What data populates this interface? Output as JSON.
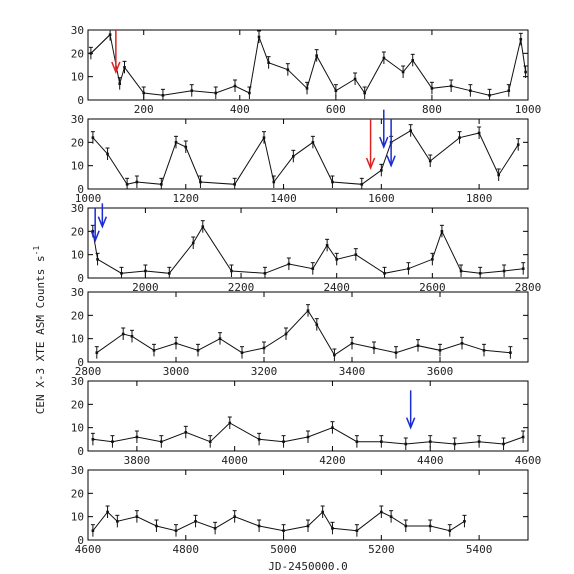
{
  "chart_data": {
    "type": "scatter",
    "ylabel": "CEN X-3 XTE ASM Counts s",
    "ylabel_superscript": "-1",
    "xlabel": "JD-2450000.0",
    "panels": [
      {
        "xlim": [
          84,
          1000
        ],
        "ylim": [
          0,
          30
        ],
        "x_ticks": [
          "200",
          "400",
          "600",
          "800",
          "1000"
        ],
        "x_tick_values": [
          200,
          400,
          600,
          800,
          1000
        ],
        "y_ticks": [
          "0",
          "10",
          "20",
          "30"
        ],
        "y_tick_values": [
          0,
          10,
          20,
          30
        ],
        "x": [
          90,
          130,
          150,
          160,
          200,
          240,
          300,
          350,
          390,
          420,
          440,
          460,
          500,
          540,
          560,
          600,
          640,
          660,
          700,
          740,
          760,
          800,
          840,
          880,
          920,
          960,
          985,
          995
        ],
        "y": [
          20,
          28,
          7,
          14,
          3,
          2,
          4,
          3,
          6,
          3,
          27,
          16,
          13,
          5,
          19,
          4,
          9,
          3,
          18,
          12,
          17,
          5,
          6,
          4,
          2,
          4,
          26,
          12
        ],
        "arrows": [
          {
            "x": 142,
            "color": "#dd2222",
            "y_from": 30,
            "y_to": 12
          }
        ],
        "segments": [
          {
            "x1": 90,
            "y1": 20,
            "x2": 130,
            "y2": 28
          }
        ]
      },
      {
        "xlim": [
          1000,
          1900
        ],
        "ylim": [
          0,
          30
        ],
        "x_ticks": [
          "1000",
          "1200",
          "1400",
          "1600",
          "1800"
        ],
        "x_tick_values": [
          1000,
          1200,
          1400,
          1600,
          1800
        ],
        "y_ticks": [
          "0",
          "10",
          "20",
          "30"
        ],
        "y_tick_values": [
          0,
          10,
          20,
          30
        ],
        "x": [
          1010,
          1040,
          1080,
          1100,
          1150,
          1180,
          1200,
          1230,
          1300,
          1360,
          1380,
          1420,
          1460,
          1500,
          1560,
          1600,
          1620,
          1660,
          1700,
          1760,
          1800,
          1840,
          1880
        ],
        "y": [
          22,
          15,
          2,
          3,
          2,
          20,
          18,
          3,
          2,
          22,
          3,
          14,
          20,
          3,
          2,
          8,
          20,
          25,
          12,
          22,
          24,
          6,
          19
        ],
        "arrows": [
          {
            "x": 1578,
            "color": "#dd2222",
            "y_from": 30,
            "y_to": 9
          },
          {
            "x": 1605,
            "color": "#1a2bd6",
            "y_from": 34,
            "y_to": 18
          },
          {
            "x": 1620,
            "color": "#1a2bd6",
            "y_from": 30,
            "y_to": 10
          }
        ],
        "segments": []
      },
      {
        "xlim": [
          1880,
          2800
        ],
        "ylim": [
          0,
          30
        ],
        "x_ticks": [
          "2000",
          "2200",
          "2400",
          "2600",
          "2800"
        ],
        "x_tick_values": [
          2000,
          2200,
          2400,
          2600,
          2800
        ],
        "y_ticks": [
          "0",
          "10",
          "20",
          "30"
        ],
        "y_tick_values": [
          0,
          10,
          20,
          30
        ],
        "x": [
          1890,
          1900,
          1950,
          2000,
          2050,
          2100,
          2120,
          2180,
          2250,
          2300,
          2350,
          2380,
          2400,
          2440,
          2500,
          2550,
          2600,
          2620,
          2660,
          2700,
          2750,
          2790
        ],
        "y": [
          20,
          8,
          2,
          3,
          2,
          15,
          22,
          3,
          2,
          6,
          4,
          14,
          8,
          10,
          2,
          4,
          8,
          20,
          3,
          2,
          3,
          4
        ],
        "arrows": [
          {
            "x": 1895,
            "color": "#1a2bd6",
            "y_from": 30,
            "y_to": 16
          },
          {
            "x": 1910,
            "color": "#1a2bd6",
            "y_from": 32,
            "y_to": 22
          }
        ],
        "segments": []
      },
      {
        "xlim": [
          2800,
          3800
        ],
        "ylim": [
          0,
          30
        ],
        "x_ticks": [
          "2800",
          "3000",
          "3200",
          "3400",
          "3600"
        ],
        "x_tick_values": [
          2800,
          3000,
          3200,
          3400,
          3600
        ],
        "y_ticks": [
          "0",
          "10",
          "20",
          "30"
        ],
        "y_tick_values": [
          0,
          10,
          20,
          30
        ],
        "x": [
          2820,
          2880,
          2900,
          2950,
          3000,
          3050,
          3100,
          3150,
          3200,
          3250,
          3300,
          3320,
          3360,
          3400,
          3450,
          3500,
          3550,
          3600,
          3650,
          3700,
          3760
        ],
        "y": [
          4,
          12,
          11,
          5,
          8,
          5,
          10,
          4,
          6,
          12,
          22,
          16,
          3,
          8,
          6,
          4,
          7,
          5,
          8,
          5,
          4
        ],
        "arrows": [],
        "segments": []
      },
      {
        "xlim": [
          3700,
          4600
        ],
        "ylim": [
          0,
          30
        ],
        "x_ticks": [
          "3800",
          "4000",
          "4200",
          "4400",
          "4600"
        ],
        "x_tick_values": [
          3800,
          4000,
          4200,
          4400,
          4600
        ],
        "y_ticks": [
          "0",
          "10",
          "20",
          "30"
        ],
        "y_tick_values": [
          0,
          10,
          20,
          30
        ],
        "x": [
          3710,
          3750,
          3800,
          3850,
          3900,
          3950,
          3990,
          4050,
          4100,
          4150,
          4200,
          4250,
          4300,
          4350,
          4400,
          4450,
          4500,
          4550,
          4590
        ],
        "y": [
          5,
          4,
          6,
          4,
          8,
          4,
          12,
          5,
          4,
          6,
          10,
          4,
          4,
          3,
          4,
          3,
          4,
          3,
          6
        ],
        "arrows": [
          {
            "x": 4360,
            "color": "#1a2bd6",
            "y_from": 26,
            "y_to": 10
          }
        ],
        "segments": []
      },
      {
        "xlim": [
          4600,
          5500
        ],
        "ylim": [
          0,
          30
        ],
        "x_ticks": [
          "4600",
          "4800",
          "5000",
          "5200",
          "5400"
        ],
        "x_tick_values": [
          4600,
          4800,
          5000,
          5200,
          5400
        ],
        "y_ticks": [
          "0",
          "10",
          "20",
          "30"
        ],
        "y_tick_values": [
          0,
          10,
          20,
          30
        ],
        "x": [
          4610,
          4640,
          4660,
          4700,
          4740,
          4780,
          4820,
          4860,
          4900,
          4950,
          5000,
          5050,
          5080,
          5100,
          5150,
          5200,
          5220,
          5250,
          5300,
          5340,
          5370
        ],
        "y": [
          4,
          12,
          8,
          10,
          6,
          4,
          8,
          5,
          10,
          6,
          4,
          6,
          12,
          5,
          4,
          12,
          10,
          6,
          6,
          4,
          8
        ],
        "arrows": [],
        "segments": []
      }
    ]
  }
}
